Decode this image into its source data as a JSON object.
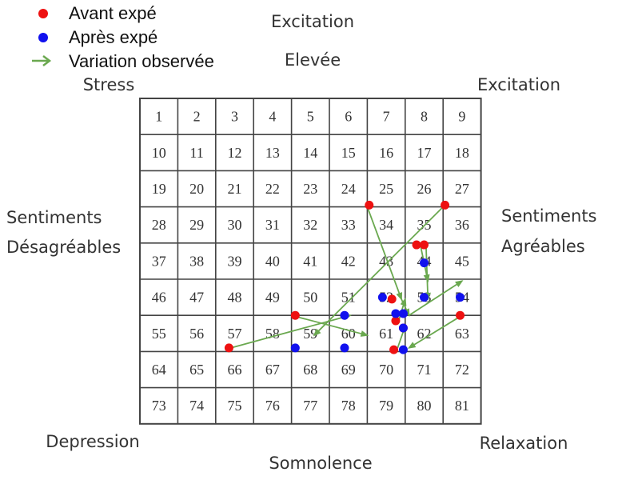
{
  "legend": {
    "before": "Avant expé",
    "after": "Après expé",
    "variation": "Variation observée"
  },
  "labels": {
    "top": "Excitation",
    "top_sub": "Elevée",
    "top_left": "Stress",
    "top_right": "Excitation",
    "left_1": "Sentiments",
    "left_2": "Désagréables",
    "right_1": "Sentiments",
    "right_2": "Agréables",
    "bottom_left": "Depression",
    "bottom_right": "Relaxation",
    "bottom": "Somnolence"
  },
  "colors": {
    "before": "#ee1111",
    "after": "#1111ee",
    "arrow": "#6aa84f",
    "grid": "#444444"
  },
  "grid": {
    "cells": [
      "1",
      "2",
      "3",
      "4",
      "5",
      "6",
      "7",
      "8",
      "9",
      "10",
      "11",
      "12",
      "13",
      "14",
      "15",
      "16",
      "17",
      "18",
      "19",
      "20",
      "21",
      "22",
      "23",
      "24",
      "25",
      "26",
      "27",
      "28",
      "29",
      "30",
      "31",
      "32",
      "33",
      "34",
      "35",
      "36",
      "37",
      "38",
      "39",
      "40",
      "41",
      "42",
      "43",
      "44",
      "45",
      "46",
      "47",
      "48",
      "49",
      "50",
      "51",
      "52",
      "53",
      "54",
      "55",
      "56",
      "57",
      "58",
      "59",
      "60",
      "61",
      "62",
      "63",
      "64",
      "65",
      "66",
      "67",
      "68",
      "69",
      "70",
      "71",
      "72",
      "73",
      "74",
      "75",
      "76",
      "77",
      "78",
      "79",
      "80",
      "81"
    ]
  },
  "variations": [
    {
      "from": [
        6.0,
        3.0
      ],
      "to": [
        6.9,
        5.55
      ]
    },
    {
      "from": [
        8.0,
        3.0
      ],
      "to": [
        4.6,
        6.55
      ]
    },
    {
      "from": [
        7.4,
        4.05
      ],
      "to": [
        7.6,
        5.05
      ]
    },
    {
      "from": [
        7.55,
        4.05
      ],
      "to": [
        7.6,
        5.55
      ]
    },
    {
      "from": [
        6.9,
        5.55
      ],
      "to": [
        7.1,
        6.0
      ]
    },
    {
      "from": [
        4.0,
        6.0
      ],
      "to": [
        6.0,
        6.55
      ]
    },
    {
      "from": [
        2.4,
        6.9
      ],
      "to": [
        5.55,
        6.0
      ]
    },
    {
      "from": [
        7.1,
        6.0
      ],
      "to": [
        8.5,
        5.05
      ]
    },
    {
      "from": [
        6.8,
        6.25
      ],
      "to": [
        7.0,
        5.55
      ]
    },
    {
      "from": [
        6.8,
        6.9
      ],
      "to": [
        7.0,
        6.3
      ]
    },
    {
      "from": [
        8.5,
        6.0
      ],
      "to": [
        7.1,
        6.9
      ]
    }
  ],
  "points_before": [
    {
      "cx": 6.05,
      "cy": 2.95
    },
    {
      "cx": 8.05,
      "cy": 2.95
    },
    {
      "cx": 7.3,
      "cy": 4.05
    },
    {
      "cx": 7.5,
      "cy": 4.05
    },
    {
      "cx": 6.65,
      "cy": 5.55
    },
    {
      "cx": 4.1,
      "cy": 6.0
    },
    {
      "cx": 6.75,
      "cy": 6.15
    },
    {
      "cx": 6.95,
      "cy": 6.35
    },
    {
      "cx": 8.45,
      "cy": 6.0
    },
    {
      "cx": 2.35,
      "cy": 6.9
    },
    {
      "cx": 6.7,
      "cy": 6.95
    }
  ],
  "points_after": [
    {
      "cx": 7.5,
      "cy": 4.55
    },
    {
      "cx": 7.5,
      "cy": 5.5
    },
    {
      "cx": 8.45,
      "cy": 5.5
    },
    {
      "cx": 6.4,
      "cy": 5.5
    },
    {
      "cx": 6.75,
      "cy": 5.95
    },
    {
      "cx": 6.95,
      "cy": 5.95
    },
    {
      "cx": 5.4,
      "cy": 6.0
    },
    {
      "cx": 6.95,
      "cy": 6.35
    },
    {
      "cx": 4.1,
      "cy": 6.9
    },
    {
      "cx": 5.4,
      "cy": 6.9
    },
    {
      "cx": 6.95,
      "cy": 6.95
    }
  ]
}
